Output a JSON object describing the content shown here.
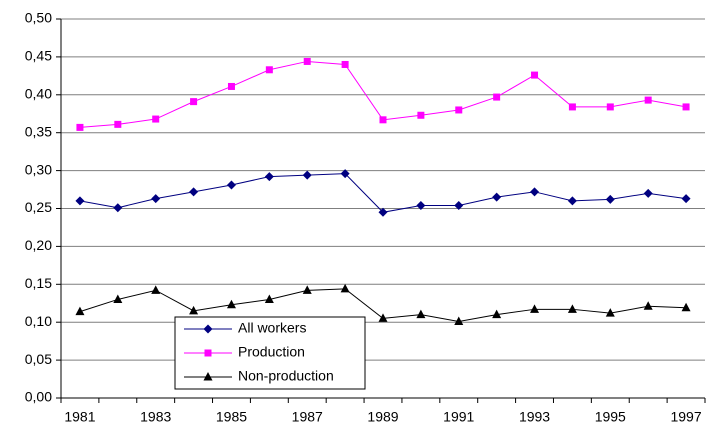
{
  "chart_data": {
    "type": "line",
    "categories": [
      "1981",
      null,
      "1983",
      null,
      "1985",
      null,
      "1987",
      null,
      "1989",
      null,
      "1991",
      null,
      "1993",
      null,
      "1995",
      null,
      "1997"
    ],
    "series": [
      {
        "name": "All workers",
        "color": "#000080",
        "marker": "diamond",
        "values": [
          0.26,
          0.251,
          0.263,
          0.272,
          0.281,
          0.292,
          0.294,
          0.296,
          0.245,
          0.254,
          0.254,
          0.265,
          0.272,
          0.26,
          0.262,
          0.27,
          0.263
        ]
      },
      {
        "name": "Production",
        "color": "#ff00ff",
        "marker": "square",
        "values": [
          0.357,
          0.361,
          0.368,
          0.391,
          0.411,
          0.433,
          0.444,
          0.44,
          0.367,
          0.373,
          0.38,
          0.397,
          0.426,
          0.384,
          0.384,
          0.393,
          0.384
        ]
      },
      {
        "name": "Non-production",
        "color": "#000000",
        "marker": "triangle",
        "values": [
          0.114,
          0.13,
          0.142,
          0.115,
          0.123,
          0.13,
          0.142,
          0.144,
          0.105,
          0.11,
          0.101,
          0.11,
          0.117,
          0.117,
          0.112,
          0.121,
          0.119
        ]
      }
    ],
    "ylim": [
      0,
      0.5
    ],
    "yticks": [
      {
        "value": 0,
        "label": "0,00"
      },
      {
        "value": 0.05,
        "label": "0,05"
      },
      {
        "value": 0.1,
        "label": "0,10"
      },
      {
        "value": 0.15,
        "label": "0,15"
      },
      {
        "value": 0.2,
        "label": "0,20"
      },
      {
        "value": 0.25,
        "label": "0,25"
      },
      {
        "value": 0.3,
        "label": "0,30"
      },
      {
        "value": 0.35,
        "label": "0,35"
      },
      {
        "value": 0.4,
        "label": "0,40"
      },
      {
        "value": 0.45,
        "label": "0,45"
      },
      {
        "value": 0.5,
        "label": "0,50"
      }
    ],
    "grid": true
  }
}
